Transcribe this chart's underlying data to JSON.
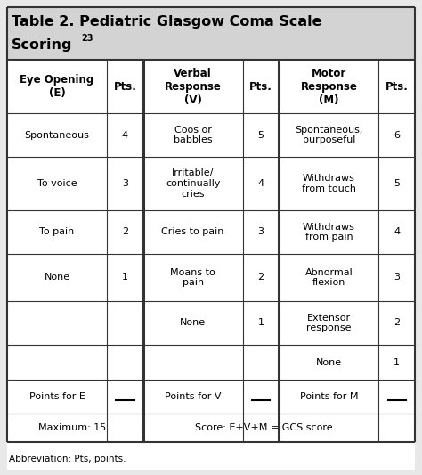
{
  "title_line1": "Table 2. Pediatric Glasgow Coma Scale",
  "title_line2": "Scoring",
  "title_superscript": "23",
  "col_headers": [
    "Eye Opening\n(E)",
    "Pts.",
    "Verbal\nResponse\n(V)",
    "Pts.",
    "Motor\nResponse\n(M)",
    "Pts."
  ],
  "rows": [
    [
      "Spontaneous",
      "4",
      "Coos or\nbabbles",
      "5",
      "Spontaneous,\npurposeful",
      "6"
    ],
    [
      "To voice",
      "3",
      "Irritable/\ncontinually\ncries",
      "4",
      "Withdraws\nfrom touch",
      "5"
    ],
    [
      "To pain",
      "2",
      "Cries to pain",
      "3",
      "Withdraws\nfrom pain",
      "4"
    ],
    [
      "None",
      "1",
      "Moans to\npain",
      "2",
      "Abnormal\nflexion",
      "3"
    ],
    [
      "",
      "",
      "None",
      "1",
      "Extensor\nresponse",
      "2"
    ],
    [
      "",
      "",
      "",
      "",
      "None",
      "1"
    ]
  ],
  "footer_row": [
    "Points for E",
    "__",
    "Points for V",
    "__",
    "Points for M",
    "__"
  ],
  "bottom_left": "Maximum: 15",
  "bottom_right": "Score: E+V+M = GCS score",
  "abbreviation": "Abbreviation: Pts, points.",
  "title_bg": "#d3d3d3",
  "body_bg": "#ffffff",
  "fig_bg": "#e8e8e8",
  "font_size": 8.0,
  "header_font_size": 8.5,
  "title_font_size": 11.5
}
